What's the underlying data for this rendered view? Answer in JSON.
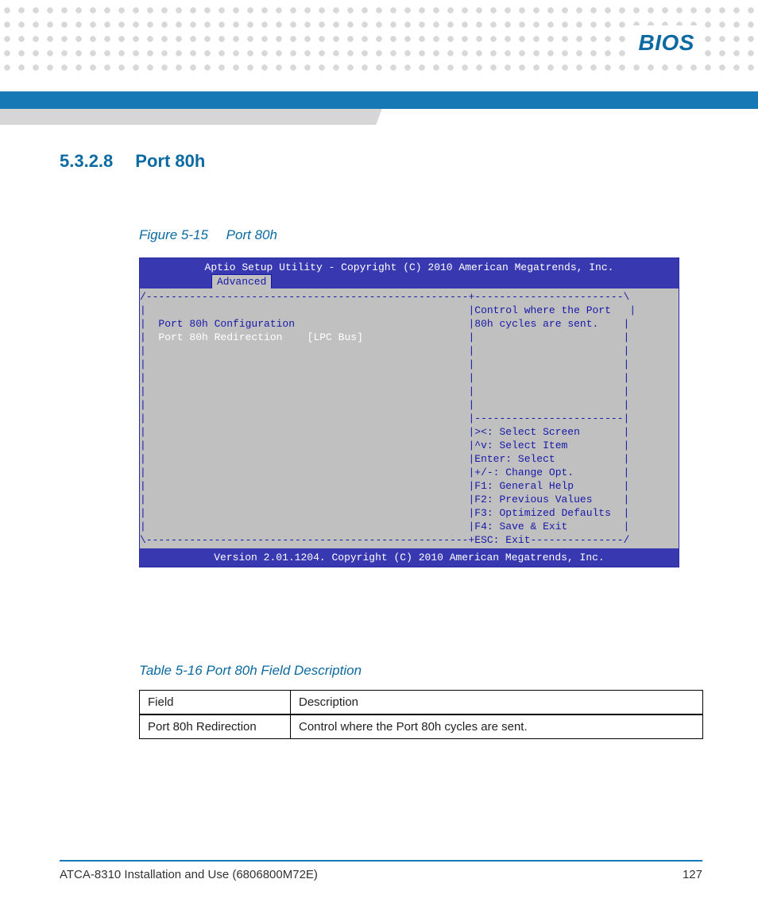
{
  "chapter": "BIOS",
  "section": {
    "number": "5.3.2.8",
    "title": "Port 80h"
  },
  "figure": {
    "number": "Figure 5-15",
    "title": "Port 80h"
  },
  "bios": {
    "header": "Aptio Setup Utility - Copyright (C) 2010 American Megatrends, Inc.",
    "tab": "Advanced",
    "left_title": "Port 80h Configuration",
    "option_label": "Port 80h Redirection",
    "option_value": "[LPC Bus]",
    "help1": "Control where the Port",
    "help2": "80h cycles are sent.",
    "keys": {
      "k1": "><: Select Screen",
      "k2": "^v: Select Item",
      "k3": "Enter: Select",
      "k4": "+/-: Change Opt.",
      "k5": "F1: General Help",
      "k6": "F2: Previous Values",
      "k7": "F3: Optimized Defaults",
      "k8": "F4: Save & Exit",
      "k9": "ESC: Exit"
    },
    "footer": "Version 2.01.1204. Copyright (C) 2010 American Megatrends, Inc."
  },
  "table": {
    "caption": "Table 5-16 Port 80h Field Description",
    "head_field": "Field",
    "head_desc": "Description",
    "row1_field": "Port 80h Redirection",
    "row1_desc": "Control where the Port 80h cycles are sent."
  },
  "footer": {
    "doc": "ATCA-8310 Installation and Use (6806800M72E)",
    "page": "127"
  },
  "colors": {
    "brand_blue": "#0a6aa1",
    "bar_blue": "#1679b5",
    "bios_blue": "#3838b0",
    "bios_gray": "#c0c0c0",
    "bios_text": "#1818a8"
  }
}
